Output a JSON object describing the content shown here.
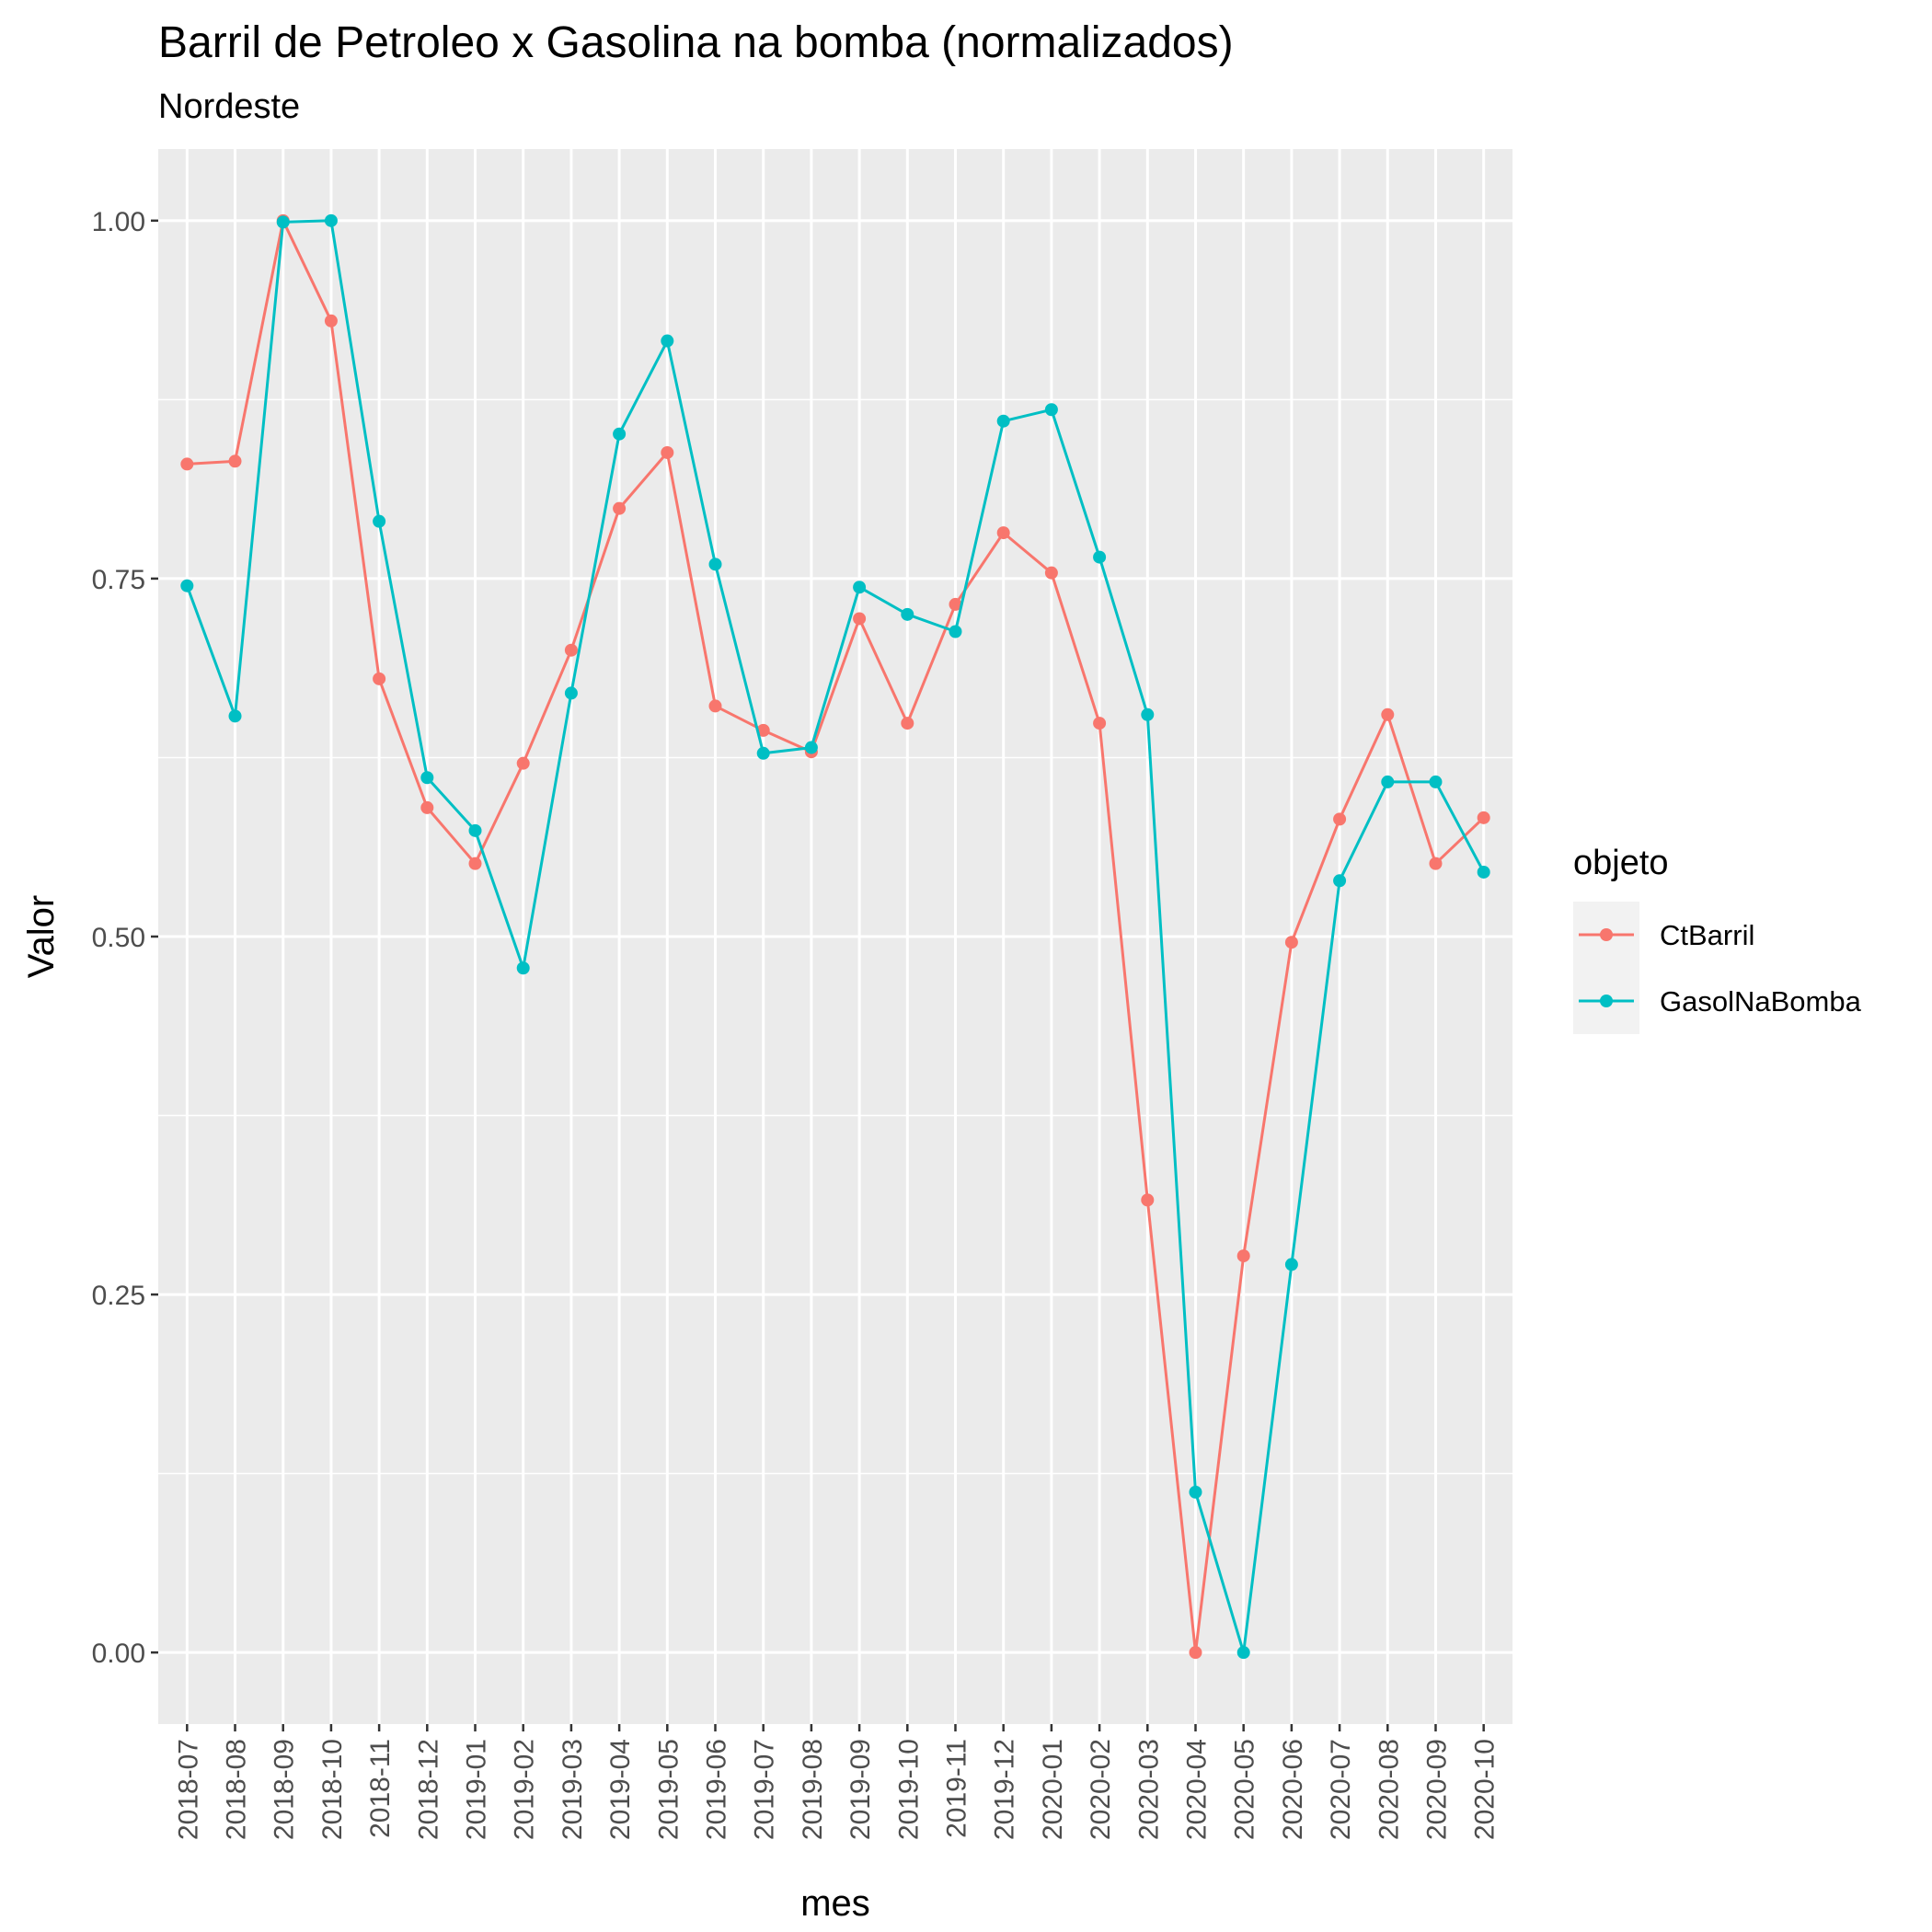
{
  "chart_data": {
    "type": "line",
    "title": "Barril de Petroleo x Gasolina na bomba (normalizados)",
    "subtitle": "Nordeste",
    "xlabel": "mes",
    "ylabel": "Valor",
    "ylim": [
      -0.05,
      1.05
    ],
    "yticks": [
      0.0,
      0.25,
      0.5,
      0.75,
      1.0
    ],
    "ytick_labels": [
      "0.00",
      "0.25",
      "0.50",
      "0.75",
      "1.00"
    ],
    "grid": true,
    "legend": {
      "title": "objeto",
      "position": "right"
    },
    "categories": [
      "2018-07",
      "2018-08",
      "2018-09",
      "2018-10",
      "2018-11",
      "2018-12",
      "2019-01",
      "2019-02",
      "2019-03",
      "2019-04",
      "2019-05",
      "2019-06",
      "2019-07",
      "2019-08",
      "2019-09",
      "2019-10",
      "2019-11",
      "2019-12",
      "2020-01",
      "2020-02",
      "2020-03",
      "2020-04",
      "2020-05",
      "2020-06",
      "2020-07",
      "2020-08",
      "2020-09",
      "2020-10"
    ],
    "series": [
      {
        "name": "CtBarril",
        "color": "#F8766D",
        "values": [
          0.83,
          0.832,
          1.0,
          0.93,
          0.68,
          0.59,
          0.551,
          0.621,
          0.7,
          0.799,
          0.838,
          0.661,
          0.644,
          0.629,
          0.722,
          0.649,
          0.732,
          0.782,
          0.754,
          0.649,
          0.316,
          0.0,
          0.277,
          0.496,
          0.582,
          0.655,
          0.551,
          0.583
        ]
      },
      {
        "name": "GasolNaBomba",
        "color": "#00BFC4",
        "values": [
          0.745,
          0.654,
          0.999,
          1.0,
          0.79,
          0.611,
          0.574,
          0.478,
          0.67,
          0.851,
          0.916,
          0.76,
          0.628,
          0.632,
          0.744,
          0.725,
          0.713,
          0.86,
          0.868,
          0.765,
          0.655,
          0.112,
          0.0,
          0.271,
          0.539,
          0.608,
          0.608,
          0.545
        ]
      }
    ]
  }
}
